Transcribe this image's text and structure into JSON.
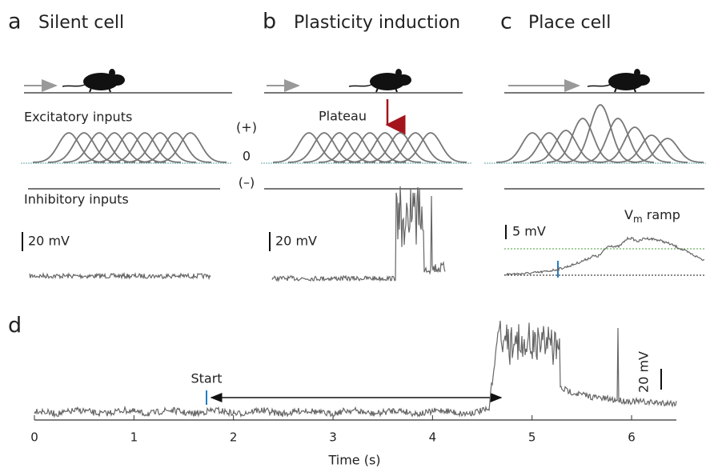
{
  "panels": [
    {
      "letter": "a",
      "title": "Silent cell",
      "excitatory_label": "Excitatory inputs",
      "inhibitory_label": "Inhibitory inputs",
      "scale_bar": "20 mV"
    },
    {
      "letter": "b",
      "title": "Plasticity induction",
      "annotation": "Plateau",
      "scale_bar": "20 mV"
    },
    {
      "letter": "c",
      "title": "Place cell",
      "annotation": {
        "main": "V",
        "sub": "m",
        "rest": " ramp"
      },
      "scale_bar": "5 mV"
    }
  ],
  "input_signs": [
    "(+)",
    "0",
    "(–)"
  ],
  "panel_d": {
    "letter": "d",
    "annotation": "Start",
    "scale_bar": "20 mV",
    "x_label": "Time (s)",
    "xlim": [
      0,
      6.45
    ],
    "xticks": [
      0,
      1,
      2,
      3,
      4,
      5,
      6
    ]
  }
}
